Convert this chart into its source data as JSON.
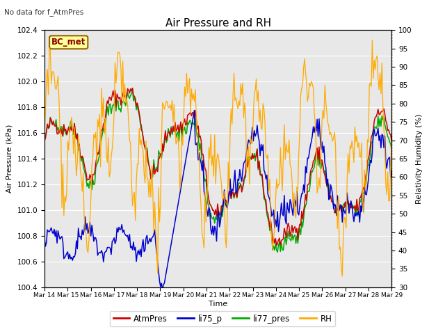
{
  "title": "Air Pressure and RH",
  "subtitle": "No data for f_AtmPres",
  "station_label": "BC_met",
  "xlabel": "Time",
  "ylabel_left": "Air Pressure (kPa)",
  "ylabel_right": "Relativity Humidity (%)",
  "ylim_left": [
    100.4,
    102.4
  ],
  "ylim_right": [
    30,
    100
  ],
  "yticks_left": [
    100.4,
    100.6,
    100.8,
    101.0,
    101.2,
    101.4,
    101.6,
    101.8,
    102.0,
    102.2,
    102.4
  ],
  "yticks_right": [
    30,
    35,
    40,
    45,
    50,
    55,
    60,
    65,
    70,
    75,
    80,
    85,
    90,
    95,
    100
  ],
  "xtick_labels": [
    "Mar 14",
    "Mar 15",
    "Mar 16",
    "Mar 17",
    "Mar 18",
    "Mar 19",
    "Mar 20",
    "Mar 21",
    "Mar 22",
    "Mar 23",
    "Mar 24",
    "Mar 25",
    "Mar 26",
    "Mar 27",
    "Mar 28",
    "Mar 29"
  ],
  "colors": {
    "AtmPres": "#cc0000",
    "li75_p": "#0000cc",
    "li77_pres": "#00aa00",
    "RH": "#ffaa00",
    "background": "#e8e8e8",
    "station_box_bg": "#ffff99",
    "station_box_border": "#996600",
    "station_text": "#880000"
  },
  "legend_labels": [
    "AtmPres",
    "li75_p",
    "li77_pres",
    "RH"
  ],
  "legend_colors": [
    "#cc0000",
    "#0000cc",
    "#00aa00",
    "#ffaa00"
  ]
}
